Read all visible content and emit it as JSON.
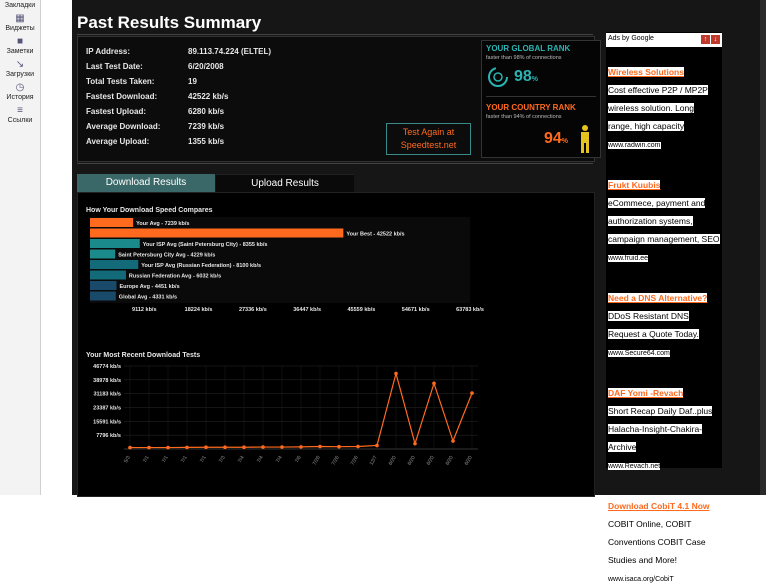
{
  "sidebar": {
    "items": [
      {
        "label": "Закладки",
        "icon": "bookmark-icon"
      },
      {
        "label": "Виджеты",
        "icon": "widgets-icon"
      },
      {
        "label": "Заметки",
        "icon": "notes-icon"
      },
      {
        "label": "Загрузки",
        "icon": "downloads-icon"
      },
      {
        "label": "История",
        "icon": "history-icon"
      },
      {
        "label": "Ссылки",
        "icon": "links-icon"
      }
    ]
  },
  "page": {
    "title": "Past Results Summary"
  },
  "summary": {
    "rows": [
      {
        "label": "IP Address:",
        "value": "89.113.74.224 (ELTEL)"
      },
      {
        "label": "Last Test Date:",
        "value": "6/20/2008"
      },
      {
        "label": "Total Tests Taken:",
        "value": "19"
      },
      {
        "label": "Fastest Download:",
        "value": "42522 kb/s"
      },
      {
        "label": "Fastest Upload:",
        "value": "6280 kb/s"
      },
      {
        "label": "Average Download:",
        "value": "7239 kb/s"
      },
      {
        "label": "Average Upload:",
        "value": "1355 kb/s"
      }
    ],
    "retest_label_1": "Test Again at",
    "retest_label_2": "Speedtest.net"
  },
  "ranks": {
    "global": {
      "title": "YOUR GLOBAL RANK",
      "sub": "faster than 98% of connections",
      "value": "98",
      "unit": "%"
    },
    "country": {
      "title": "YOUR COUNTRY RANK",
      "sub": "faster than 94% of connections",
      "value": "94",
      "unit": "%"
    }
  },
  "tabs": {
    "download": "Download Results",
    "upload": "Upload Results"
  },
  "colors": {
    "accent": "#ff6a1f",
    "teal": "#1a8a8a",
    "panel_bg": "#000000"
  },
  "chart_data": [
    {
      "type": "bar",
      "title": "How Your Download Speed Compares",
      "orientation": "horizontal",
      "categories": [
        "Your Avg - 7239 kb/s",
        "Your Best - 42522 kb/s",
        "Your ISP Avg (Saint Petersburg City) - 8355 kb/s",
        "Saint Petersburg City Avg - 4229 kb/s",
        "Your ISP Avg (Russian Federation) - 8100 kb/s",
        "Russian Federation Avg - 6032 kb/s",
        "Europe Avg - 4451 kb/s",
        "Global Avg - 4331 kb/s"
      ],
      "values": [
        7239,
        42522,
        8355,
        4229,
        8100,
        6032,
        4451,
        4331
      ],
      "colors": [
        "#ff6a1f",
        "#ff6a1f",
        "#1a8a8a",
        "#1a8a8a",
        "#136b7a",
        "#136b7a",
        "#1a4a6a",
        "#1a4a6a"
      ],
      "xticks": [
        "9112 kb/s",
        "18224 kb/s",
        "27336 kb/s",
        "36447 kb/s",
        "45559 kb/s",
        "54671 kb/s",
        "63783 kb/s"
      ],
      "xlim": [
        0,
        63783
      ]
    },
    {
      "type": "line",
      "title": "Your Most Recent Download Tests",
      "yticks": [
        "46774 kb/s",
        "38978 kb/s",
        "31183 kb/s",
        "23387 kb/s",
        "15591 kb/s",
        "7796 kb/s"
      ],
      "ylim": [
        0,
        46774
      ],
      "x": [
        "5/3",
        "7/1",
        "7/1",
        "7/1",
        "7/1",
        "7/3",
        "7/4",
        "7/4",
        "7/4",
        "7/6",
        "7/26",
        "7/26",
        "7/26",
        "12/7",
        "6/20",
        "6/20",
        "6/20",
        "6/20",
        "6/20"
      ],
      "values": [
        800,
        800,
        800,
        900,
        1000,
        1000,
        1000,
        1100,
        1100,
        1200,
        1400,
        1300,
        1400,
        2000,
        42522,
        3000,
        37000,
        4500,
        31500
      ],
      "color": "#ff6a1f"
    }
  ],
  "ads": {
    "header": "Ads by Google",
    "items": [
      {
        "title": "Wireless Solutions",
        "body": "Cost effective P2P / MP2P wireless solution. Long range, high capacity",
        "url": "www.radwin.com"
      },
      {
        "title": "Frukt Kuubis",
        "body": "eCommece, payment and authorization systems, campaign management, SEO",
        "url": "www.fruid.ee"
      },
      {
        "title": "Need a DNS Alternative?",
        "body": "DDoS Resistant DNS Request a Quote Today.",
        "url": "www.Secure64.com"
      },
      {
        "title": "DAF Yomi -Revach",
        "body": "Short Recap Daily Daf..plus Halacha-Insight-Chakira-Archive",
        "url": "www.Revach.net"
      },
      {
        "title": "Download CobiT 4.1 Now",
        "body": "COBIT Online, COBIT Conventions COBIT Case Studies and More!",
        "url": "www.isaca.org/CobiT"
      }
    ]
  }
}
